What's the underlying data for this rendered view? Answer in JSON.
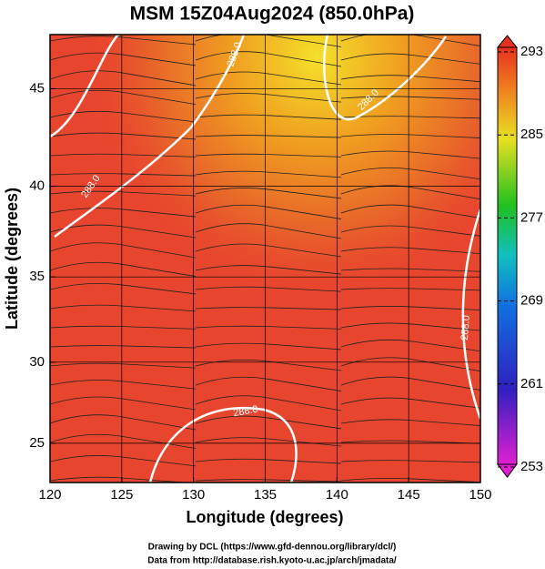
{
  "map": {
    "title": "MSM 15Z04Aug2024 (850.0hPa)",
    "x_label": "Longitude (degrees)",
    "y_label": "Latitude  (degrees)",
    "xlim": [
      120,
      150
    ],
    "xticks": [
      120,
      125,
      130,
      135,
      140,
      145,
      150
    ],
    "ylim": [
      22.5,
      47.6
    ],
    "yticks": [
      25,
      30,
      35,
      40,
      45
    ],
    "grid": true,
    "colorbar": {
      "lim": [
        253,
        293
      ],
      "ticks": [
        253,
        261,
        269,
        277,
        285,
        293
      ]
    },
    "contour_labels": [
      "288.0",
      "288.0",
      "288.0",
      "288.0",
      "288.0"
    ],
    "credits": [
      "Drawing by DCL (https://www.gfd-dennou.org/library/dcl/)",
      "Data from http://database.rish.kyoto-u.ac.jp/arch/jmadata/"
    ]
  }
}
